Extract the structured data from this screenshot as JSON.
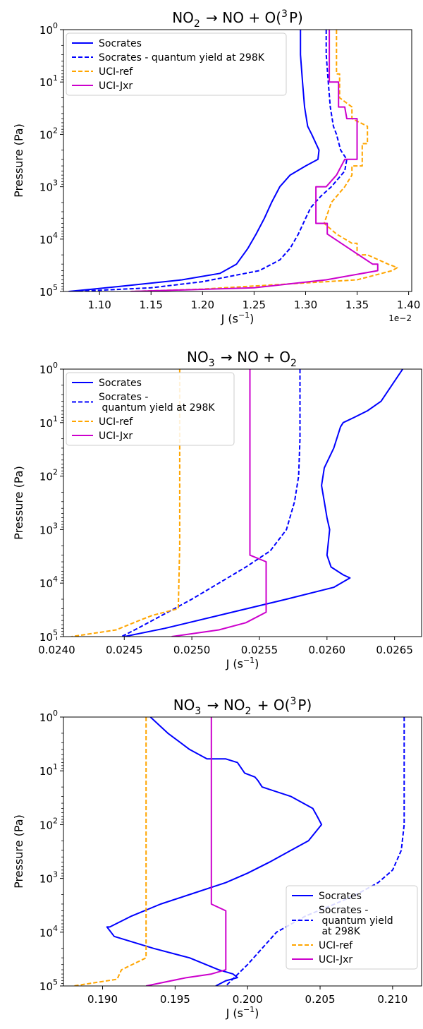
{
  "chart_data": [
    {
      "type": "line",
      "title_parts": {
        "a": "NO",
        "a_sub": "2",
        "b": " → NO + O(",
        "b_sup": "3",
        "c": "P)"
      },
      "xlabel_parts": {
        "a": "J (s",
        "sup": "−1",
        "b": ")"
      },
      "ylabel": "Pressure (Pa)",
      "x_scale_label": "1e−2",
      "xlim": [
        1.065,
        1.403
      ],
      "x_tick_values": [
        1.1,
        1.15,
        1.2,
        1.25,
        1.3,
        1.35,
        1.4
      ],
      "x_tick_labels": [
        "1.10",
        "1.15",
        "1.20",
        "1.25",
        "1.30",
        "1.35",
        "1.40"
      ],
      "y_scale": "log",
      "y_inverted": true,
      "y_ticks": [
        {
          "base": "10",
          "exp": "0"
        },
        {
          "base": "10",
          "exp": "1"
        },
        {
          "base": "10",
          "exp": "2"
        },
        {
          "base": "10",
          "exp": "3"
        },
        {
          "base": "10",
          "exp": "4"
        },
        {
          "base": "10",
          "exp": "5"
        }
      ],
      "legend_position": "upper left",
      "series": [
        {
          "name": "Socrates",
          "color": "#0000ff",
          "dash": "solid",
          "points": [
            [
              1.295,
              1
            ],
            [
              1.295,
              3
            ],
            [
              1.297,
              10
            ],
            [
              1.299,
              30
            ],
            [
              1.302,
              70
            ],
            [
              1.306,
              100
            ],
            [
              1.313,
              200
            ],
            [
              1.312,
              300
            ],
            [
              1.3,
              400
            ],
            [
              1.285,
              600
            ],
            [
              1.275,
              1000
            ],
            [
              1.267,
              2000
            ],
            [
              1.26,
              4000
            ],
            [
              1.252,
              8000
            ],
            [
              1.244,
              15000
            ],
            [
              1.233,
              30000
            ],
            [
              1.217,
              45000
            ],
            [
              1.18,
              60000
            ],
            [
              1.12,
              80000
            ],
            [
              1.07,
              100000
            ]
          ]
        },
        {
          "name": "Socrates - quantum yield at 298K",
          "color": "#0000ff",
          "dash": "dashed",
          "points": [
            [
              1.32,
              1
            ],
            [
              1.32,
              3
            ],
            [
              1.322,
              10
            ],
            [
              1.324,
              30
            ],
            [
              1.327,
              70
            ],
            [
              1.33,
              100
            ],
            [
              1.334,
              200
            ],
            [
              1.34,
              300
            ],
            [
              1.338,
              500
            ],
            [
              1.325,
              1000
            ],
            [
              1.315,
              1500
            ],
            [
              1.305,
              2500
            ],
            [
              1.3,
              4000
            ],
            [
              1.293,
              8000
            ],
            [
              1.285,
              15000
            ],
            [
              1.275,
              25000
            ],
            [
              1.255,
              40000
            ],
            [
              1.2,
              65000
            ],
            [
              1.15,
              85000
            ],
            [
              1.075,
              100000
            ]
          ]
        },
        {
          "name": "UCI-ref",
          "color": "#ffa500",
          "dash": "dashed",
          "points": [
            [
              1.33,
              1
            ],
            [
              1.33,
              7
            ],
            [
              1.333,
              7
            ],
            [
              1.333,
              20
            ],
            [
              1.345,
              30
            ],
            [
              1.345,
              50
            ],
            [
              1.36,
              70
            ],
            [
              1.36,
              150
            ],
            [
              1.355,
              150
            ],
            [
              1.355,
              400
            ],
            [
              1.345,
              400
            ],
            [
              1.345,
              600
            ],
            [
              1.338,
              1000
            ],
            [
              1.325,
              2000
            ],
            [
              1.318,
              5000
            ],
            [
              1.33,
              8000
            ],
            [
              1.345,
              12000
            ],
            [
              1.35,
              12000
            ],
            [
              1.35,
              20000
            ],
            [
              1.36,
              20000
            ],
            [
              1.38,
              30000
            ],
            [
              1.389,
              35000
            ],
            [
              1.384,
              40000
            ],
            [
              1.35,
              60000
            ],
            [
              1.2,
              90000
            ],
            [
              1.13,
              100000
            ]
          ]
        },
        {
          "name": "UCI-Jxr",
          "color": "#cc00cc",
          "dash": "solid",
          "points": [
            [
              1.323,
              1
            ],
            [
              1.323,
              10
            ],
            [
              1.332,
              10
            ],
            [
              1.332,
              30
            ],
            [
              1.338,
              30
            ],
            [
              1.34,
              50
            ],
            [
              1.35,
              50
            ],
            [
              1.35,
              300
            ],
            [
              1.338,
              300
            ],
            [
              1.33,
              600
            ],
            [
              1.32,
              1000
            ],
            [
              1.31,
              1000
            ],
            [
              1.31,
              5000
            ],
            [
              1.321,
              5000
            ],
            [
              1.321,
              8000
            ],
            [
              1.365,
              30000
            ],
            [
              1.37,
              30000
            ],
            [
              1.37,
              40000
            ],
            [
              1.32,
              60000
            ],
            [
              1.25,
              85000
            ],
            [
              1.13,
              100000
            ]
          ]
        }
      ]
    },
    {
      "type": "line",
      "title_parts": {
        "a": "NO",
        "a_sub": "3",
        "b": " → NO + O",
        "b_sub": "2"
      },
      "xlabel_parts": {
        "a": "J (s",
        "sup": "−1",
        "b": ")"
      },
      "ylabel": "Pressure (Pa)",
      "xlim": [
        0.02405,
        0.0267
      ],
      "x_tick_values": [
        0.024,
        0.0245,
        0.025,
        0.0255,
        0.026,
        0.0265
      ],
      "x_tick_labels": [
        "0.0240",
        "0.0245",
        "0.0250",
        "0.0255",
        "0.0260",
        "0.0265"
      ],
      "y_scale": "log",
      "y_inverted": true,
      "y_ticks": [
        {
          "base": "10",
          "exp": "0"
        },
        {
          "base": "10",
          "exp": "1"
        },
        {
          "base": "10",
          "exp": "2"
        },
        {
          "base": "10",
          "exp": "3"
        },
        {
          "base": "10",
          "exp": "4"
        },
        {
          "base": "10",
          "exp": "5"
        }
      ],
      "legend_position": "upper left",
      "series": [
        {
          "name": "Socrates",
          "color": "#0000ff",
          "dash": "solid",
          "points": [
            [
              0.02656,
              1
            ],
            [
              0.02648,
              2
            ],
            [
              0.0264,
              4
            ],
            [
              0.0263,
              6
            ],
            [
              0.0262,
              8
            ],
            [
              0.02612,
              10
            ],
            [
              0.0261,
              12
            ],
            [
              0.02605,
              30
            ],
            [
              0.02598,
              70
            ],
            [
              0.02596,
              150
            ],
            [
              0.02598,
              300
            ],
            [
              0.026,
              600
            ],
            [
              0.02602,
              1000
            ],
            [
              0.026,
              3000
            ],
            [
              0.02603,
              5000
            ],
            [
              0.02612,
              7000
            ],
            [
              0.02617,
              8000
            ],
            [
              0.02605,
              12000
            ],
            [
              0.0257,
              20000
            ],
            [
              0.0253,
              35000
            ],
            [
              0.0248,
              70000
            ],
            [
              0.0245,
              100000
            ]
          ]
        },
        {
          "name": "Socrates -\n quantum yield at 298K",
          "color": "#0000ff",
          "dash": "dashed",
          "points": [
            [
              0.0258,
              1
            ],
            [
              0.0258,
              20
            ],
            [
              0.02579,
              100
            ],
            [
              0.02576,
              300
            ],
            [
              0.0257,
              1000
            ],
            [
              0.02558,
              2500
            ],
            [
              0.0254,
              5000
            ],
            [
              0.0252,
              10000
            ],
            [
              0.025,
              20000
            ],
            [
              0.02478,
              40000
            ],
            [
              0.0246,
              70000
            ],
            [
              0.02448,
              100000
            ]
          ]
        },
        {
          "name": "UCI-ref",
          "color": "#ffa500",
          "dash": "dashed",
          "points": [
            [
              0.02491,
              1
            ],
            [
              0.02491,
              2000
            ],
            [
              0.0249,
              30000
            ],
            [
              0.02471,
              40000
            ],
            [
              0.02461,
              50000
            ],
            [
              0.02444,
              75000
            ],
            [
              0.02411,
              100000
            ]
          ]
        },
        {
          "name": "UCI-Jxr",
          "color": "#cc00cc",
          "dash": "solid",
          "points": [
            [
              0.02543,
              1
            ],
            [
              0.02543,
              3000
            ],
            [
              0.02555,
              4000
            ],
            [
              0.02555,
              35000
            ],
            [
              0.0254,
              55000
            ],
            [
              0.0252,
              75000
            ],
            [
              0.02485,
              100000
            ]
          ]
        }
      ]
    },
    {
      "type": "line",
      "title_parts": {
        "a": "NO",
        "a_sub": "3",
        "b": " → NO",
        "b_sub": "2",
        "c": " + O(",
        "c_sup": "3",
        "d": "P)"
      },
      "xlabel_parts": {
        "a": "J (s",
        "sup": "−1",
        "b": ")"
      },
      "ylabel": "Pressure (Pa)",
      "xlim": [
        0.1873,
        0.212
      ],
      "x_tick_values": [
        0.19,
        0.195,
        0.2,
        0.205,
        0.21
      ],
      "x_tick_labels": [
        "0.190",
        "0.195",
        "0.200",
        "0.205",
        "0.210"
      ],
      "y_scale": "log",
      "y_inverted": true,
      "y_ticks": [
        {
          "base": "10",
          "exp": "0"
        },
        {
          "base": "10",
          "exp": "1"
        },
        {
          "base": "10",
          "exp": "2"
        },
        {
          "base": "10",
          "exp": "3"
        },
        {
          "base": "10",
          "exp": "4"
        },
        {
          "base": "10",
          "exp": "5"
        }
      ],
      "legend_position": "lower right",
      "series": [
        {
          "name": "Socrates",
          "color": "#0000ff",
          "dash": "solid",
          "points": [
            [
              0.1933,
              1
            ],
            [
              0.1945,
              2
            ],
            [
              0.196,
              4
            ],
            [
              0.1972,
              6
            ],
            [
              0.1985,
              6
            ],
            [
              0.1993,
              7
            ],
            [
              0.1998,
              11
            ],
            [
              0.2005,
              13
            ],
            [
              0.2007,
              15
            ],
            [
              0.201,
              20
            ],
            [
              0.203,
              30
            ],
            [
              0.2045,
              50
            ],
            [
              0.2048,
              70
            ],
            [
              0.2051,
              100
            ],
            [
              0.2042,
              200
            ],
            [
              0.203,
              300
            ],
            [
              0.2015,
              500
            ],
            [
              0.2,
              800
            ],
            [
              0.1985,
              1200
            ],
            [
              0.196,
              2000
            ],
            [
              0.194,
              3000
            ],
            [
              0.192,
              5000
            ],
            [
              0.1905,
              8000
            ],
            [
              0.1903,
              8000
            ],
            [
              0.1908,
              12000
            ],
            [
              0.1935,
              20000
            ],
            [
              0.196,
              30000
            ],
            [
              0.198,
              50000
            ],
            [
              0.199,
              60000
            ],
            [
              0.1993,
              70000
            ],
            [
              0.1985,
              80000
            ],
            [
              0.1978,
              100000
            ]
          ]
        },
        {
          "name": "Socrates -\n quantum yield\n at 298K",
          "color": "#0000ff",
          "dash": "dashed",
          "points": [
            [
              0.2108,
              1
            ],
            [
              0.2108,
              100
            ],
            [
              0.2106,
              300
            ],
            [
              0.21,
              700
            ],
            [
              0.209,
              1200
            ],
            [
              0.2075,
              2000
            ],
            [
              0.206,
              3000
            ],
            [
              0.204,
              5000
            ],
            [
              0.202,
              10000
            ],
            [
              0.201,
              20000
            ],
            [
              0.2,
              40000
            ],
            [
              0.1985,
              100000
            ]
          ]
        },
        {
          "name": "UCI-ref",
          "color": "#ffa500",
          "dash": "dashed",
          "points": [
            [
              0.193,
              1
            ],
            [
              0.193,
              30000
            ],
            [
              0.1913,
              50000
            ],
            [
              0.191,
              75000
            ],
            [
              0.188,
              100000
            ]
          ]
        },
        {
          "name": "UCI-Jxr",
          "color": "#cc00cc",
          "dash": "solid",
          "points": [
            [
              0.1975,
              1
            ],
            [
              0.1975,
              3000
            ],
            [
              0.1985,
              4000
            ],
            [
              0.1985,
              50000
            ],
            [
              0.1975,
              60000
            ],
            [
              0.1958,
              70000
            ],
            [
              0.193,
              100000
            ]
          ]
        }
      ]
    }
  ]
}
